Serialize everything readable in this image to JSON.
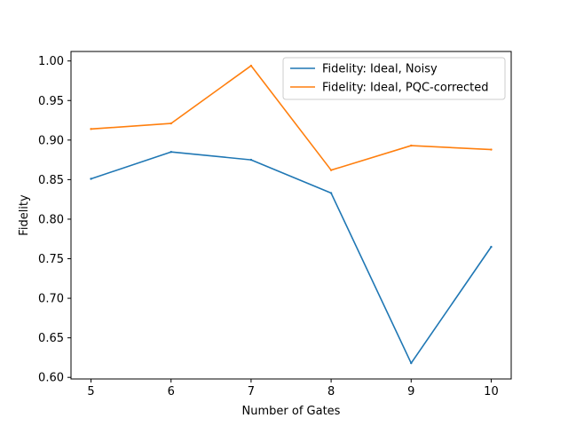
{
  "chart_data": {
    "type": "line",
    "title": "",
    "xlabel": "Number of Gates",
    "ylabel": "Fidelity",
    "x": [
      5,
      6,
      7,
      8,
      9,
      10
    ],
    "xlim": [
      4.75,
      10.25
    ],
    "ylim": [
      0.598,
      1.012
    ],
    "xticks": [
      "5",
      "6",
      "7",
      "8",
      "9",
      "10"
    ],
    "yticks": [
      "0.60",
      "0.65",
      "0.70",
      "0.75",
      "0.80",
      "0.85",
      "0.90",
      "0.95",
      "1.00"
    ],
    "grid": false,
    "legend_position": "top-right",
    "series": [
      {
        "name": "Fidelity: Ideal, Noisy",
        "color": "#1f77b4",
        "values": [
          0.851,
          0.885,
          0.875,
          0.833,
          0.618,
          0.765
        ]
      },
      {
        "name": "Fidelity: Ideal, PQC-corrected",
        "color": "#ff7f0e",
        "values": [
          0.914,
          0.921,
          0.994,
          0.862,
          0.893,
          0.888
        ]
      }
    ]
  }
}
